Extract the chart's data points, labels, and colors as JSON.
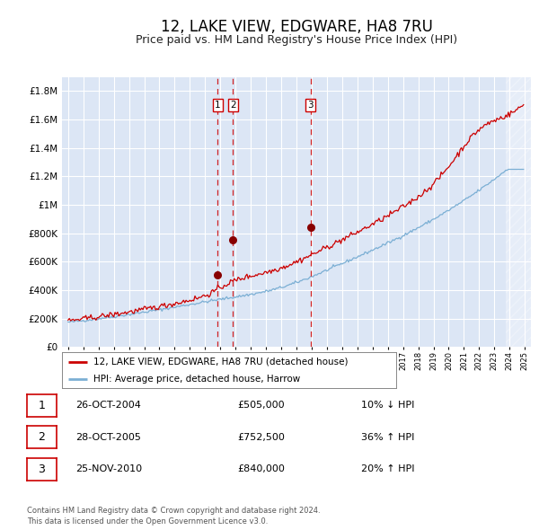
{
  "title": "12, LAKE VIEW, EDGWARE, HA8 7RU",
  "subtitle": "Price paid vs. HM Land Registry's House Price Index (HPI)",
  "title_fontsize": 12,
  "subtitle_fontsize": 9,
  "background_color": "#ffffff",
  "plot_bg_color": "#dce6f5",
  "grid_color": "#ffffff",
  "red_line_color": "#cc0000",
  "blue_line_color": "#7bafd4",
  "sale_marker_color": "#880000",
  "dashed_line_color": "#cc0000",
  "ylim": [
    0,
    1900000
  ],
  "yticks": [
    0,
    200000,
    400000,
    600000,
    800000,
    1000000,
    1200000,
    1400000,
    1600000,
    1800000
  ],
  "ytick_labels": [
    "£0",
    "£200K",
    "£400K",
    "£600K",
    "£800K",
    "£1M",
    "£1.2M",
    "£1.4M",
    "£1.6M",
    "£1.8M"
  ],
  "xstart_year": 1995,
  "xend_year": 2025,
  "sale_events": [
    {
      "label": "1",
      "date": "26-OCT-2004",
      "price": 505000,
      "pct": "10%",
      "dir": "↓"
    },
    {
      "label": "2",
      "date": "28-OCT-2005",
      "price": 752500,
      "pct": "36%",
      "dir": "↑"
    },
    {
      "label": "3",
      "date": "25-NOV-2010",
      "price": 840000,
      "pct": "20%",
      "dir": "↑"
    }
  ],
  "legend_items": [
    {
      "label": "12, LAKE VIEW, EDGWARE, HA8 7RU (detached house)",
      "color": "#cc0000"
    },
    {
      "label": "HPI: Average price, detached house, Harrow",
      "color": "#7bafd4"
    }
  ],
  "footer_text": "Contains HM Land Registry data © Crown copyright and database right 2024.\nThis data is licensed under the Open Government Licence v3.0.",
  "table_rows": [
    [
      "1",
      "26-OCT-2004",
      "£505,000",
      "10% ↓ HPI"
    ],
    [
      "2",
      "28-OCT-2005",
      "£752,500",
      "36% ↑ HPI"
    ],
    [
      "3",
      "25-NOV-2010",
      "£840,000",
      "20% ↑ HPI"
    ]
  ]
}
